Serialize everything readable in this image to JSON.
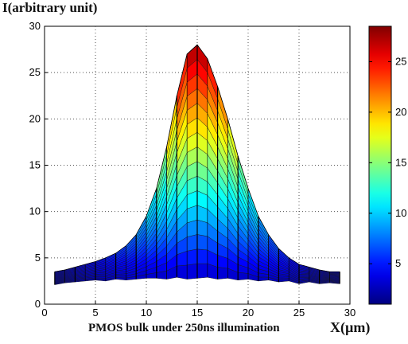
{
  "chart_data": {
    "type": "area",
    "title": "",
    "ylabel": "I(arbitrary unit)",
    "xlabel": "X(µm)",
    "caption": "PMOS bulk under 250ns illumination",
    "xlim": [
      0,
      30
    ],
    "ylim": [
      0,
      30
    ],
    "xticks": [
      0,
      5,
      10,
      15,
      20,
      25,
      30
    ],
    "yticks": [
      0,
      5,
      10,
      15,
      20,
      25,
      30
    ],
    "grid": true,
    "grid_style": "dotted",
    "colorbar": {
      "min": 1,
      "max": 28.5,
      "ticks": [
        5,
        10,
        15,
        20,
        25
      ],
      "colormap": "jet",
      "position": "right"
    },
    "x": [
      1,
      2,
      3,
      4,
      5,
      6,
      7,
      8,
      9,
      10,
      11,
      12,
      13,
      14,
      15,
      16,
      17,
      18,
      19,
      20,
      21,
      22,
      23,
      24,
      25,
      26,
      27,
      28,
      29
    ],
    "peak_profile": [
      3.5,
      3.7,
      4.0,
      4.3,
      4.6,
      5.0,
      5.5,
      6.3,
      7.5,
      9.5,
      12.5,
      17.0,
      22.5,
      27.0,
      28.0,
      26.5,
      23.5,
      20.0,
      16.0,
      12.5,
      9.5,
      7.5,
      6.0,
      5.0,
      4.3,
      4.0,
      3.7,
      3.5,
      3.5
    ],
    "base_profile": [
      2.1,
      2.3,
      2.4,
      2.5,
      2.6,
      2.5,
      2.7,
      2.6,
      2.7,
      2.8,
      2.8,
      2.7,
      2.9,
      2.7,
      2.8,
      2.9,
      2.7,
      2.8,
      2.6,
      2.7,
      2.5,
      2.6,
      2.4,
      2.5,
      2.2,
      2.4,
      2.2,
      2.3,
      2.2
    ],
    "surface_levels": 16
  }
}
